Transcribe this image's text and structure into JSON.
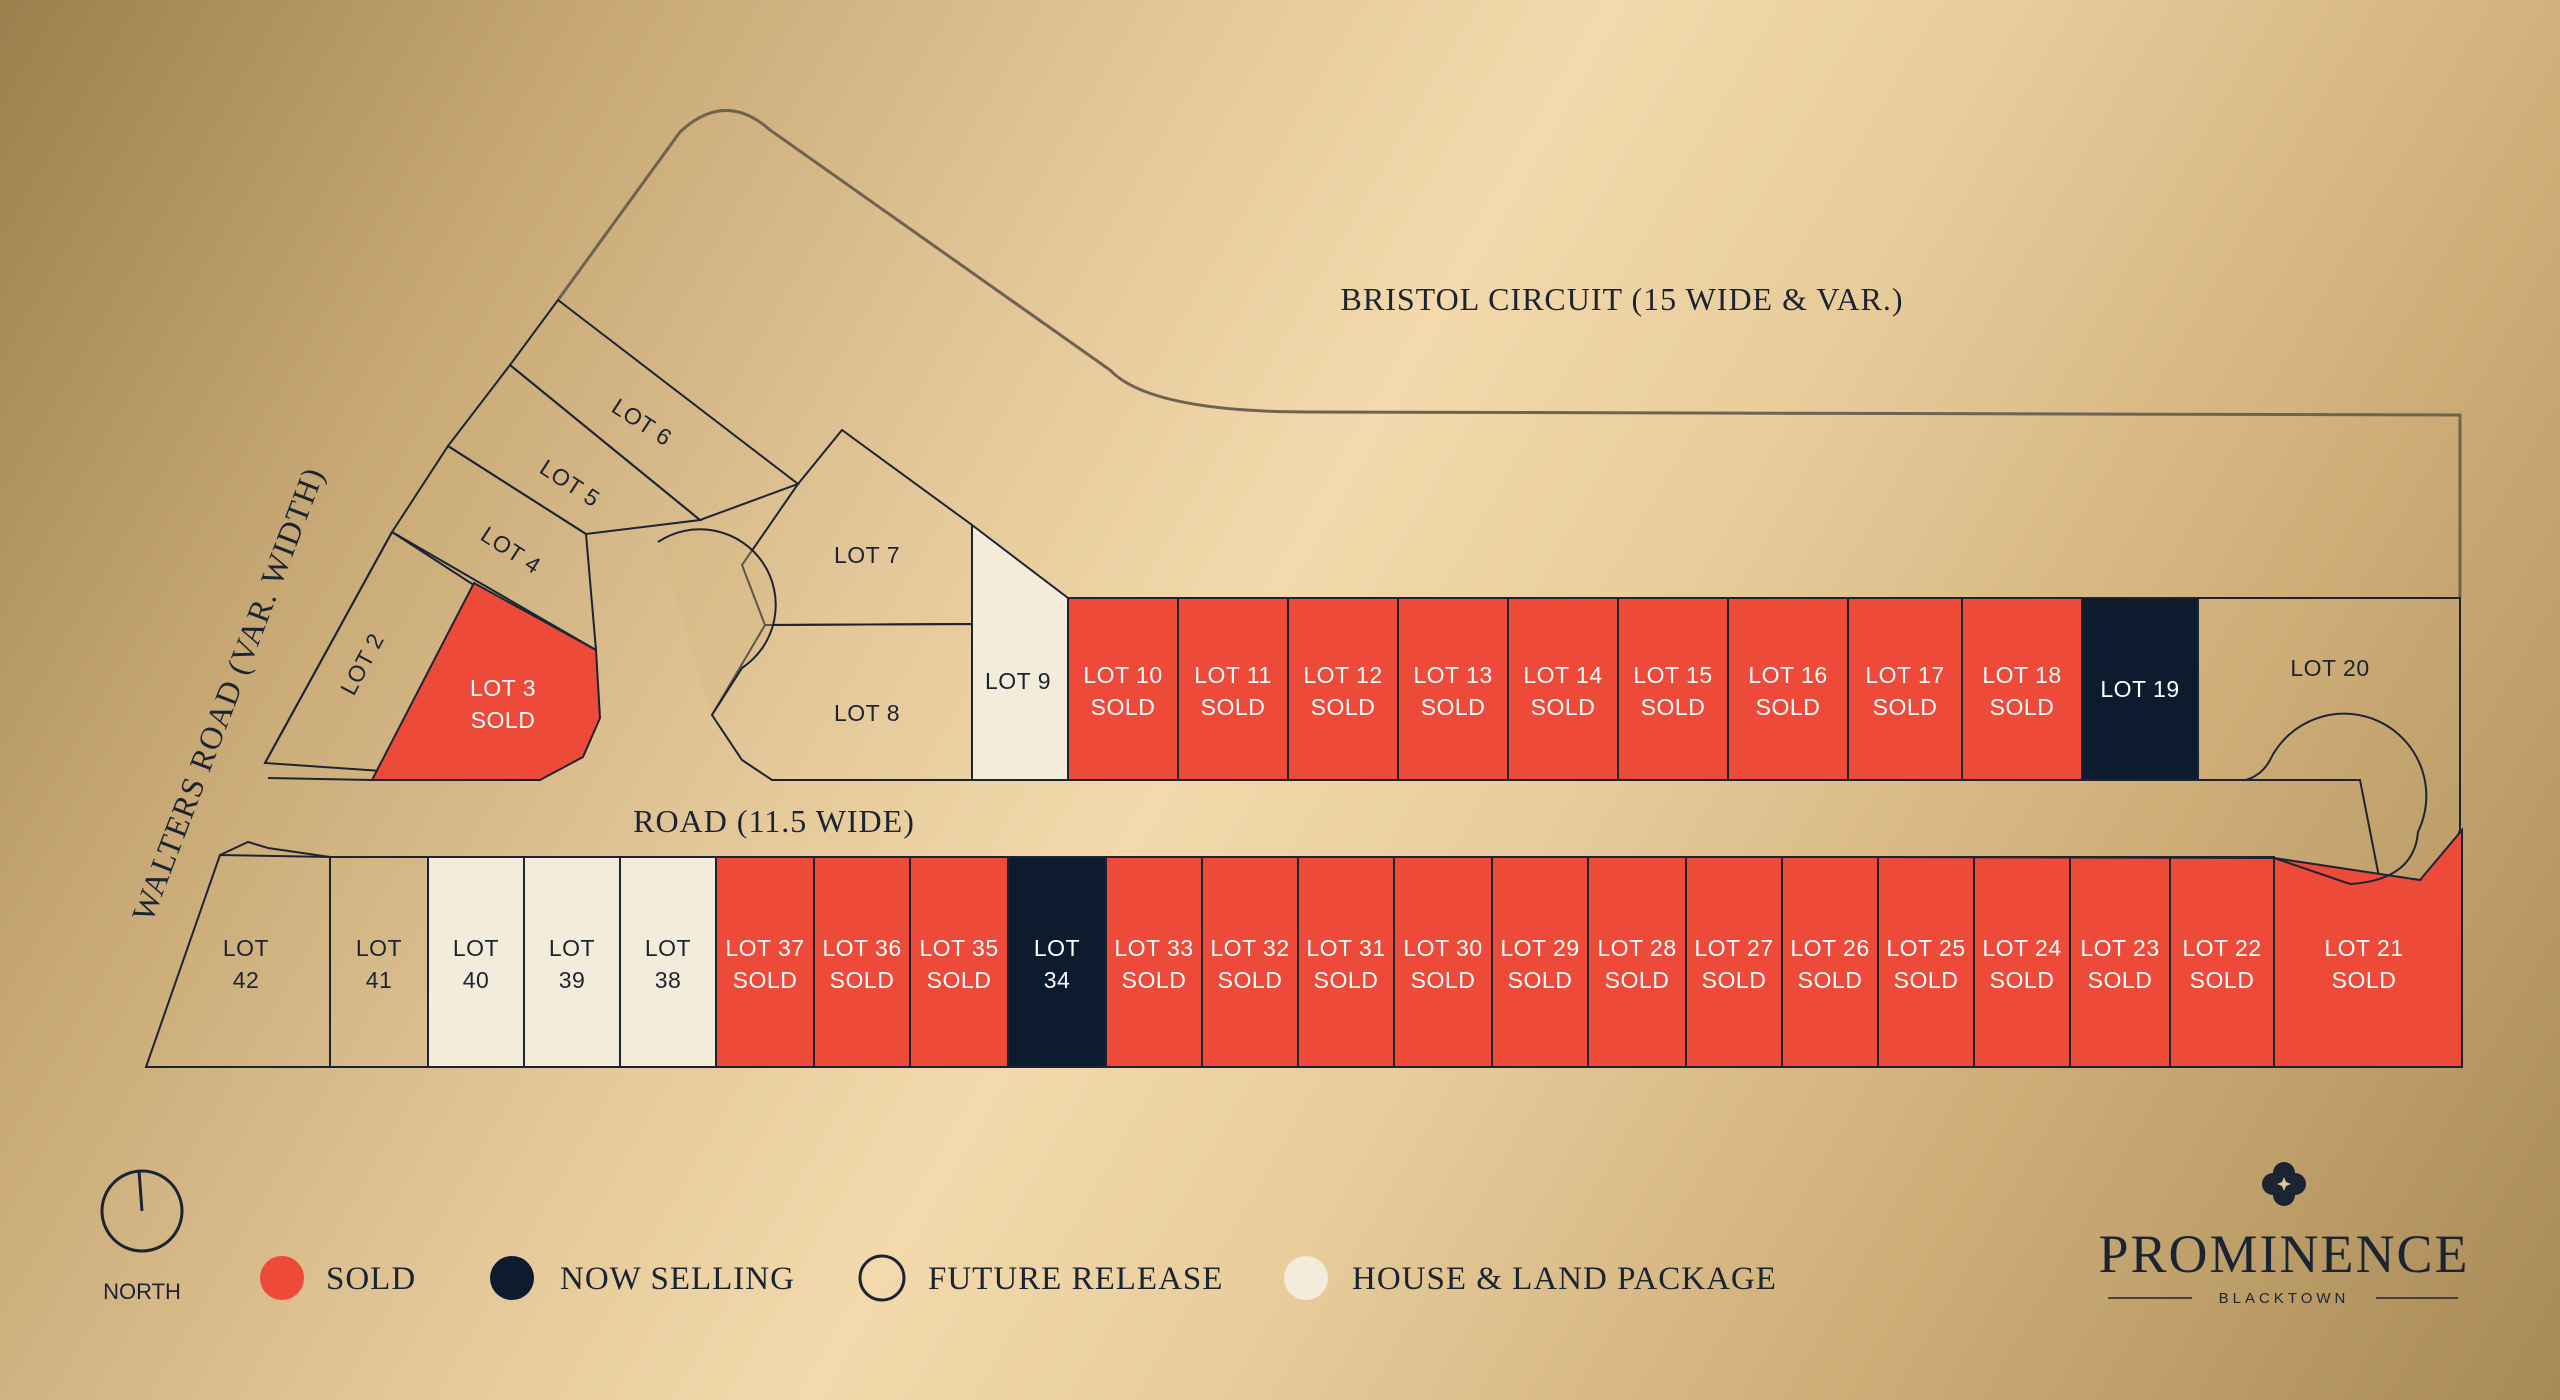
{
  "colors": {
    "sold": "#ee4a3a",
    "now_selling": "#0d1b2e",
    "future_release": "none",
    "house_land": "#f3ecdb",
    "outline": "#1c2434",
    "light_text": "#ffffff",
    "dark_text": "#1b2433"
  },
  "roads": {
    "bristol": "BRISTOL CIRCUIT (15 WIDE & VAR.)",
    "walters": "WALTERS ROAD (VAR. WIDTH)",
    "road": "ROAD (11.5 WIDE)"
  },
  "lots": [
    {
      "id": "2",
      "line1": "LOT 2",
      "line2": "",
      "status": "future"
    },
    {
      "id": "3",
      "line1": "LOT 3",
      "line2": "SOLD",
      "status": "sold"
    },
    {
      "id": "4",
      "line1": "LOT 4",
      "line2": "",
      "status": "future"
    },
    {
      "id": "5",
      "line1": "LOT 5",
      "line2": "",
      "status": "future"
    },
    {
      "id": "6",
      "line1": "LOT 6",
      "line2": "",
      "status": "future"
    },
    {
      "id": "7",
      "line1": "LOT 7",
      "line2": "",
      "status": "future"
    },
    {
      "id": "8",
      "line1": "LOT 8",
      "line2": "",
      "status": "future"
    },
    {
      "id": "9",
      "line1": "LOT 9",
      "line2": "",
      "status": "house"
    },
    {
      "id": "10",
      "line1": "LOT 10",
      "line2": "SOLD",
      "status": "sold"
    },
    {
      "id": "11",
      "line1": "LOT 11",
      "line2": "SOLD",
      "status": "sold"
    },
    {
      "id": "12",
      "line1": "LOT 12",
      "line2": "SOLD",
      "status": "sold"
    },
    {
      "id": "13",
      "line1": "LOT 13",
      "line2": "SOLD",
      "status": "sold"
    },
    {
      "id": "14",
      "line1": "LOT 14",
      "line2": "SOLD",
      "status": "sold"
    },
    {
      "id": "15",
      "line1": "LOT 15",
      "line2": "SOLD",
      "status": "sold"
    },
    {
      "id": "16",
      "line1": "LOT 16",
      "line2": "SOLD",
      "status": "sold"
    },
    {
      "id": "17",
      "line1": "LOT 17",
      "line2": "SOLD",
      "status": "sold"
    },
    {
      "id": "18",
      "line1": "LOT 18",
      "line2": "SOLD",
      "status": "sold"
    },
    {
      "id": "19",
      "line1": "LOT 19",
      "line2": "",
      "status": "now"
    },
    {
      "id": "20",
      "line1": "LOT 20",
      "line2": "",
      "status": "future"
    },
    {
      "id": "21",
      "line1": "LOT 21",
      "line2": "SOLD",
      "status": "sold"
    },
    {
      "id": "22",
      "line1": "LOT 22",
      "line2": "SOLD",
      "status": "sold"
    },
    {
      "id": "23",
      "line1": "LOT 23",
      "line2": "SOLD",
      "status": "sold"
    },
    {
      "id": "24",
      "line1": "LOT 24",
      "line2": "SOLD",
      "status": "sold"
    },
    {
      "id": "25",
      "line1": "LOT 25",
      "line2": "SOLD",
      "status": "sold"
    },
    {
      "id": "26",
      "line1": "LOT 26",
      "line2": "SOLD",
      "status": "sold"
    },
    {
      "id": "27",
      "line1": "LOT 27",
      "line2": "SOLD",
      "status": "sold"
    },
    {
      "id": "28",
      "line1": "LOT 28",
      "line2": "SOLD",
      "status": "sold"
    },
    {
      "id": "29",
      "line1": "LOT 29",
      "line2": "SOLD",
      "status": "sold"
    },
    {
      "id": "30",
      "line1": "LOT 30",
      "line2": "SOLD",
      "status": "sold"
    },
    {
      "id": "31",
      "line1": "LOT 31",
      "line2": "SOLD",
      "status": "sold"
    },
    {
      "id": "32",
      "line1": "LOT 32",
      "line2": "SOLD",
      "status": "sold"
    },
    {
      "id": "33",
      "line1": "LOT 33",
      "line2": "SOLD",
      "status": "sold"
    },
    {
      "id": "34",
      "line1": "LOT",
      "line2": "34",
      "status": "now"
    },
    {
      "id": "35",
      "line1": "LOT 35",
      "line2": "SOLD",
      "status": "sold"
    },
    {
      "id": "36",
      "line1": "LOT 36",
      "line2": "SOLD",
      "status": "sold"
    },
    {
      "id": "37",
      "line1": "LOT 37",
      "line2": "SOLD",
      "status": "sold"
    },
    {
      "id": "38",
      "line1": "LOT",
      "line2": "38",
      "status": "house"
    },
    {
      "id": "39",
      "line1": "LOT",
      "line2": "39",
      "status": "house"
    },
    {
      "id": "40",
      "line1": "LOT",
      "line2": "40",
      "status": "house"
    },
    {
      "id": "41",
      "line1": "LOT",
      "line2": "41",
      "status": "future"
    },
    {
      "id": "42",
      "line1": "LOT",
      "line2": "42",
      "status": "future"
    }
  ],
  "legend": {
    "north": "NORTH",
    "sold": "SOLD",
    "now_selling": "NOW SELLING",
    "future_release": "FUTURE RELEASE",
    "house_land": "HOUSE & LAND PACKAGE"
  },
  "brand": {
    "logo_icon": "quatrefoil-icon",
    "name": "PROMINENCE",
    "sub": "BLACKTOWN"
  }
}
